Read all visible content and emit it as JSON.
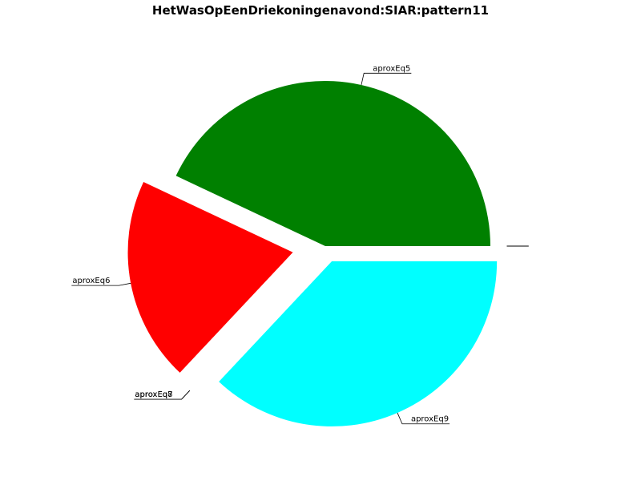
{
  "chart_data": {
    "type": "pie",
    "title": "HetWasOpEenDriekoningenavond:SIAR:pattern11",
    "slices": [
      {
        "label": "aproxEq5",
        "value": 0.43,
        "color": "#008000",
        "explode": 0.0
      },
      {
        "label": "aproxEq6",
        "value": 0.2,
        "color": "#ff0000",
        "explode": 0.2
      },
      {
        "label": "aproxEq7",
        "value": 0.0,
        "color": "#0000ff",
        "explode": 0.2
      },
      {
        "label": "aproxEq8",
        "value": 0.0,
        "color": "#ff00ff",
        "explode": 0.2
      },
      {
        "label": "aproxEq9",
        "value": 0.37,
        "color": "#00ffff",
        "explode": 0.1
      },
      {
        "label": "",
        "value": 0.0,
        "color": "#ffffff",
        "explode": 0.1
      },
      {
        "label": "",
        "value": 0.0,
        "color": "#ffffff",
        "explode": 0.1
      },
      {
        "label": "",
        "value": 0.0,
        "color": "#ffffff",
        "explode": 0.1
      },
      {
        "label": "",
        "value": 0.0,
        "color": "#ffffff",
        "explode": 0.1
      },
      {
        "label": "",
        "value": 0.0,
        "color": "#ffffff",
        "explode": 0.1
      },
      {
        "label": "",
        "value": 0.0,
        "color": "#ffffff",
        "explode": 0.1
      }
    ],
    "start_angle": 0,
    "direction": "counterclockwise"
  }
}
